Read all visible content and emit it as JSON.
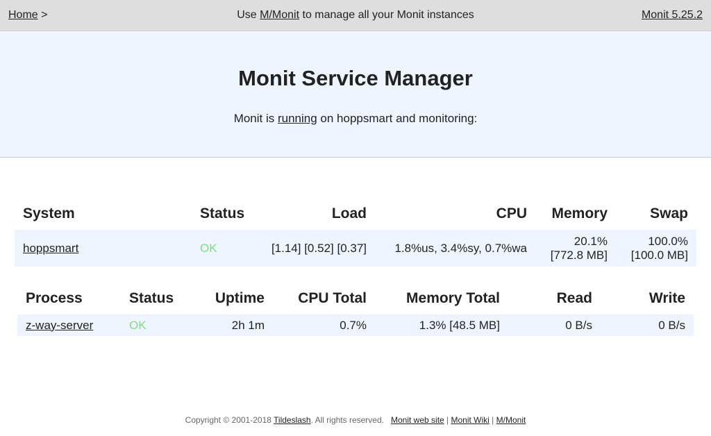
{
  "topbar": {
    "home_label": "Home",
    "home_sep": " >",
    "center_prefix": "Use ",
    "center_link": "M/Monit",
    "center_suffix": " to manage all your Monit instances",
    "version": "Monit 5.25.2"
  },
  "header": {
    "title": "Monit Service Manager",
    "sub_prefix": "Monit is ",
    "sub_link": "running",
    "sub_suffix": " on hoppsmart and monitoring:"
  },
  "system_table": {
    "headers": [
      "System",
      "Status",
      "Load",
      "CPU",
      "Memory",
      "Swap"
    ],
    "row": {
      "name": "hoppsmart",
      "status": "OK",
      "load": "[1.14] [0.52] [0.37]",
      "cpu": "1.8%us, 3.4%sy, 0.7%wa",
      "memory_pct": "20.1%",
      "memory_amt": "[772.8 MB]",
      "swap_pct": "100.0%",
      "swap_amt": "[100.0 MB]"
    }
  },
  "process_table": {
    "headers": [
      "Process",
      "Status",
      "Uptime",
      "CPU Total",
      "Memory Total",
      "Read",
      "Write"
    ],
    "row": {
      "name": "z-way-server",
      "status": "OK",
      "uptime": "2h 1m",
      "cpu_total": "0.7%",
      "memory_total": "1.3% [48.5 MB]",
      "read": "0 B/s",
      "write": "0 B/s"
    }
  },
  "footer": {
    "copyright_prefix": "Copyright © 2001-2018 ",
    "company": "Tildeslash",
    "rights": ". All rights reserved.",
    "link_site": "Monit web site",
    "link_wiki": "Monit Wiki",
    "link_mmonit": "M/Monit",
    "separator": " | "
  },
  "colors": {
    "ok_status": "#7fe07f",
    "header_bg": "#eef5fe",
    "topbar_bg": "#dedede"
  }
}
